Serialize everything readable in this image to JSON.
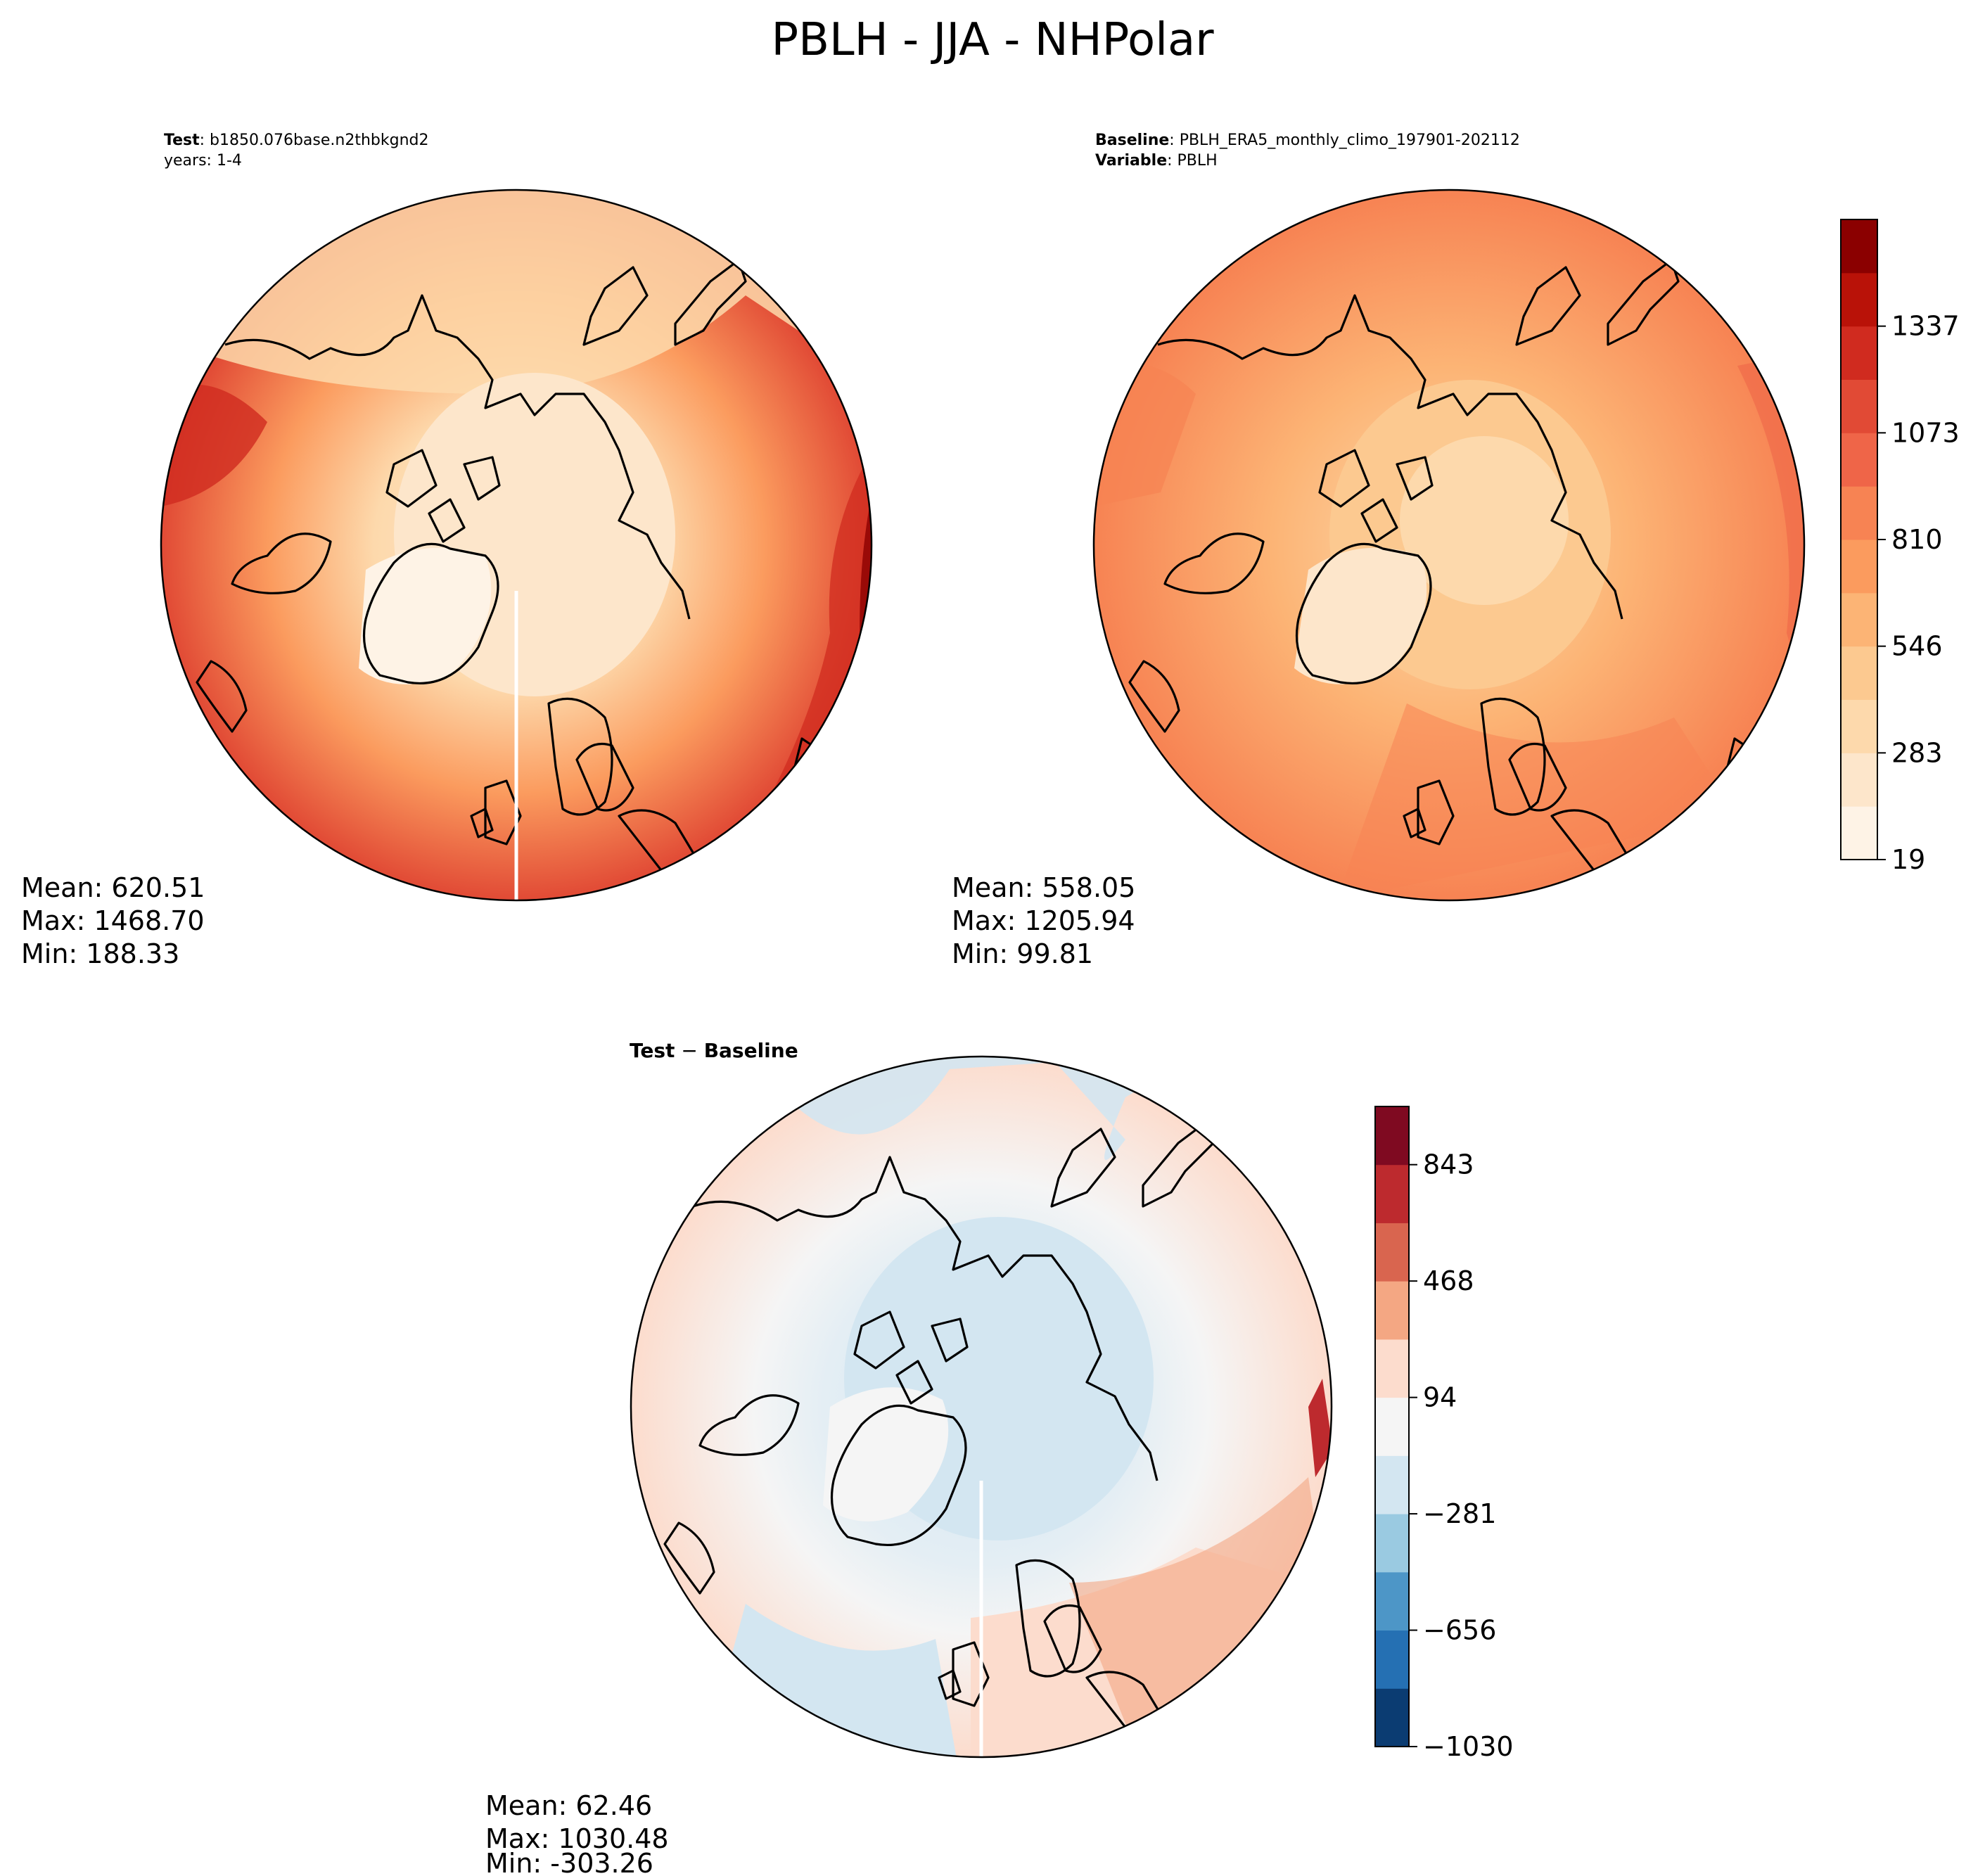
{
  "figure_title": "PBLH - JJA - NHPolar",
  "panels": {
    "test": {
      "header_line1_bold": "Test",
      "header_line1_rest": ": b1850.076base.n2thbkgnd2",
      "header_line2": "years: 1-4",
      "stats": {
        "mean": "Mean: 620.51",
        "max": "Max: 1468.70",
        "min": "Min: 188.33"
      }
    },
    "baseline": {
      "header_line1_bold": "Baseline",
      "header_line1_rest": ": PBLH_ERA5_monthly_climo_197901-202112",
      "header_line2_bold": "Variable",
      "header_line2_rest": ": PBLH",
      "stats": {
        "mean": "Mean: 558.05",
        "max": "Max: 1205.94",
        "min": "Min: 99.81"
      }
    },
    "diff": {
      "title_bold_1": "Test",
      "title_sep": " − ",
      "title_bold_2": "Baseline",
      "stats": {
        "mean": "Mean: 62.46",
        "max": "Max: 1030.48",
        "min": "Min: -303.26"
      }
    }
  },
  "chart_data": [
    {
      "type": "heatmap",
      "name": "Test",
      "projection": "north-polar-stereographic",
      "colormap": "OrRd-like",
      "stats": {
        "mean": 620.51,
        "max": 1468.7,
        "min": 188.33
      }
    },
    {
      "type": "heatmap",
      "name": "Baseline",
      "projection": "north-polar-stereographic",
      "colormap": "OrRd-like",
      "stats": {
        "mean": 558.05,
        "max": 1205.94,
        "min": 99.81
      },
      "colorbar": {
        "ticks": [
          "19",
          "283",
          "546",
          "810",
          "1073",
          "1337"
        ],
        "range": [
          19,
          1468
        ],
        "levels": 12,
        "colors": [
          "#fef3e6",
          "#fde6cb",
          "#fdd9ac",
          "#fcc990",
          "#fcb475",
          "#fb9b5e",
          "#f78353",
          "#ef6548",
          "#e14a35",
          "#d02b1f",
          "#b91208",
          "#8b0000"
        ]
      }
    },
    {
      "type": "heatmap",
      "name": "Test - Baseline",
      "projection": "north-polar-stereographic",
      "colormap": "RdBu_r",
      "stats": {
        "mean": 62.46,
        "max": 1030.48,
        "min": -303.26
      },
      "colorbar": {
        "ticks": [
          "−1030",
          "−656",
          "−281",
          "94",
          "468",
          "843"
        ],
        "range": [
          -1030,
          1030
        ],
        "levels": 11,
        "colors": [
          "#0b3c72",
          "#2570b3",
          "#4d96c7",
          "#9acae1",
          "#d3e6f1",
          "#f5f5f5",
          "#fcdccd",
          "#f4a783",
          "#d9654f",
          "#bd2a2e",
          "#7f0a21"
        ]
      }
    }
  ]
}
